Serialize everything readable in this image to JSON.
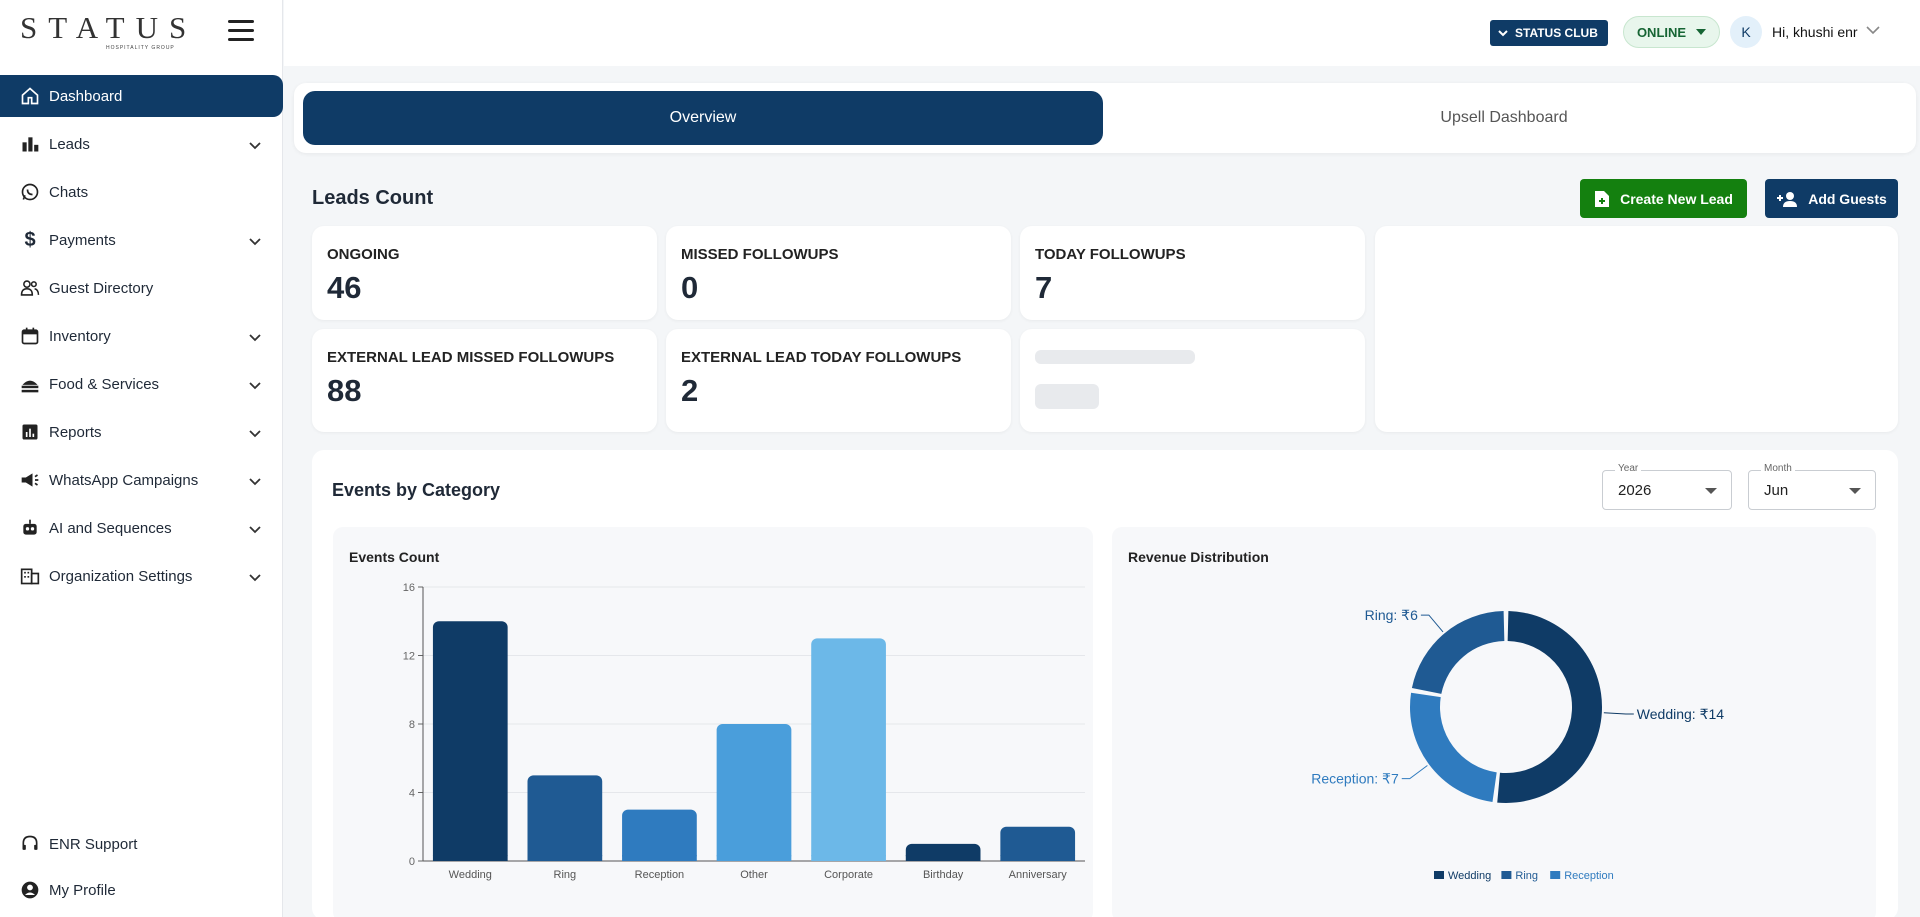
{
  "brand": {
    "logo_text": "STATUS",
    "logo_sub": "HOSPITALITY GROUP"
  },
  "sidebar": {
    "items": [
      {
        "label": "Dashboard",
        "icon": "home-icon",
        "expandable": false,
        "active": true
      },
      {
        "label": "Leads",
        "icon": "bar-chart-icon",
        "expandable": true
      },
      {
        "label": "Chats",
        "icon": "whatsapp-icon",
        "expandable": false
      },
      {
        "label": "Payments",
        "icon": "dollar-icon",
        "expandable": true
      },
      {
        "label": "Guest Directory",
        "icon": "people-icon",
        "expandable": false
      },
      {
        "label": "Inventory",
        "icon": "calendar-icon",
        "expandable": true
      },
      {
        "label": "Food & Services",
        "icon": "food-icon",
        "expandable": true
      },
      {
        "label": "Reports",
        "icon": "report-icon",
        "expandable": true
      },
      {
        "label": "WhatsApp Campaigns",
        "icon": "megaphone-icon",
        "expandable": true
      },
      {
        "label": "AI and Sequences",
        "icon": "robot-icon",
        "expandable": true
      },
      {
        "label": "Organization Settings",
        "icon": "building-icon",
        "expandable": true
      }
    ],
    "bottom": [
      {
        "label": "ENR Support",
        "icon": "headset-icon"
      },
      {
        "label": "My Profile",
        "icon": "profile-icon"
      }
    ]
  },
  "header": {
    "club_label": "STATUS CLUB",
    "status_label": "ONLINE",
    "avatar_initial": "K",
    "greeting": "Hi,  khushi enr"
  },
  "tabs": [
    {
      "label": "Overview",
      "active": true
    },
    {
      "label": "Upsell Dashboard",
      "active": false
    }
  ],
  "leads": {
    "title": "Leads Count",
    "create_button": "Create New Lead",
    "add_guests_button": "Add Guests",
    "cards": [
      {
        "label": "ONGOING",
        "value": "46"
      },
      {
        "label": "MISSED FOLLOWUPS",
        "value": "0"
      },
      {
        "label": "TODAY FOLLOWUPS",
        "value": "7"
      },
      {
        "label": "EXTERNAL LEAD MISSED FOLLOWUPS",
        "value": "88"
      },
      {
        "label": "EXTERNAL LEAD TODAY FOLLOWUPS",
        "value": "2"
      }
    ]
  },
  "events": {
    "title": "Events by Category",
    "year_label": "Year",
    "year_value": "2026",
    "month_label": "Month",
    "month_value": "Jun"
  },
  "chart_data": [
    {
      "type": "bar",
      "title": "Events Count",
      "categories": [
        "Wedding",
        "Ring",
        "Reception",
        "Other",
        "Corporate",
        "Birthday",
        "Anniversary"
      ],
      "values": [
        14,
        5,
        3,
        8,
        13,
        1,
        2
      ],
      "colors": [
        "#0f3b66",
        "#1f5a93",
        "#2f7bbf",
        "#4a9edb",
        "#6cb8e8",
        "#0f3b66",
        "#1f5a93"
      ],
      "ylim": [
        0,
        16
      ],
      "yticks": [
        "0",
        "4",
        "8",
        "12",
        "16"
      ],
      "grid": true
    },
    {
      "type": "pie",
      "title": "Revenue Distribution",
      "donut": true,
      "slices": [
        {
          "label": "Wedding",
          "value": 14,
          "color": "#0f3b66",
          "data_label": "Wedding: ₹14"
        },
        {
          "label": "Reception",
          "value": 7,
          "color": "#2f7bbf",
          "data_label": "Reception: ₹7"
        },
        {
          "label": "Ring",
          "value": 6,
          "color": "#1f5a93",
          "data_label": "Ring: ₹6"
        }
      ],
      "legend": [
        "Wedding",
        "Ring",
        "Reception"
      ],
      "legend_position": "bottom"
    }
  ]
}
